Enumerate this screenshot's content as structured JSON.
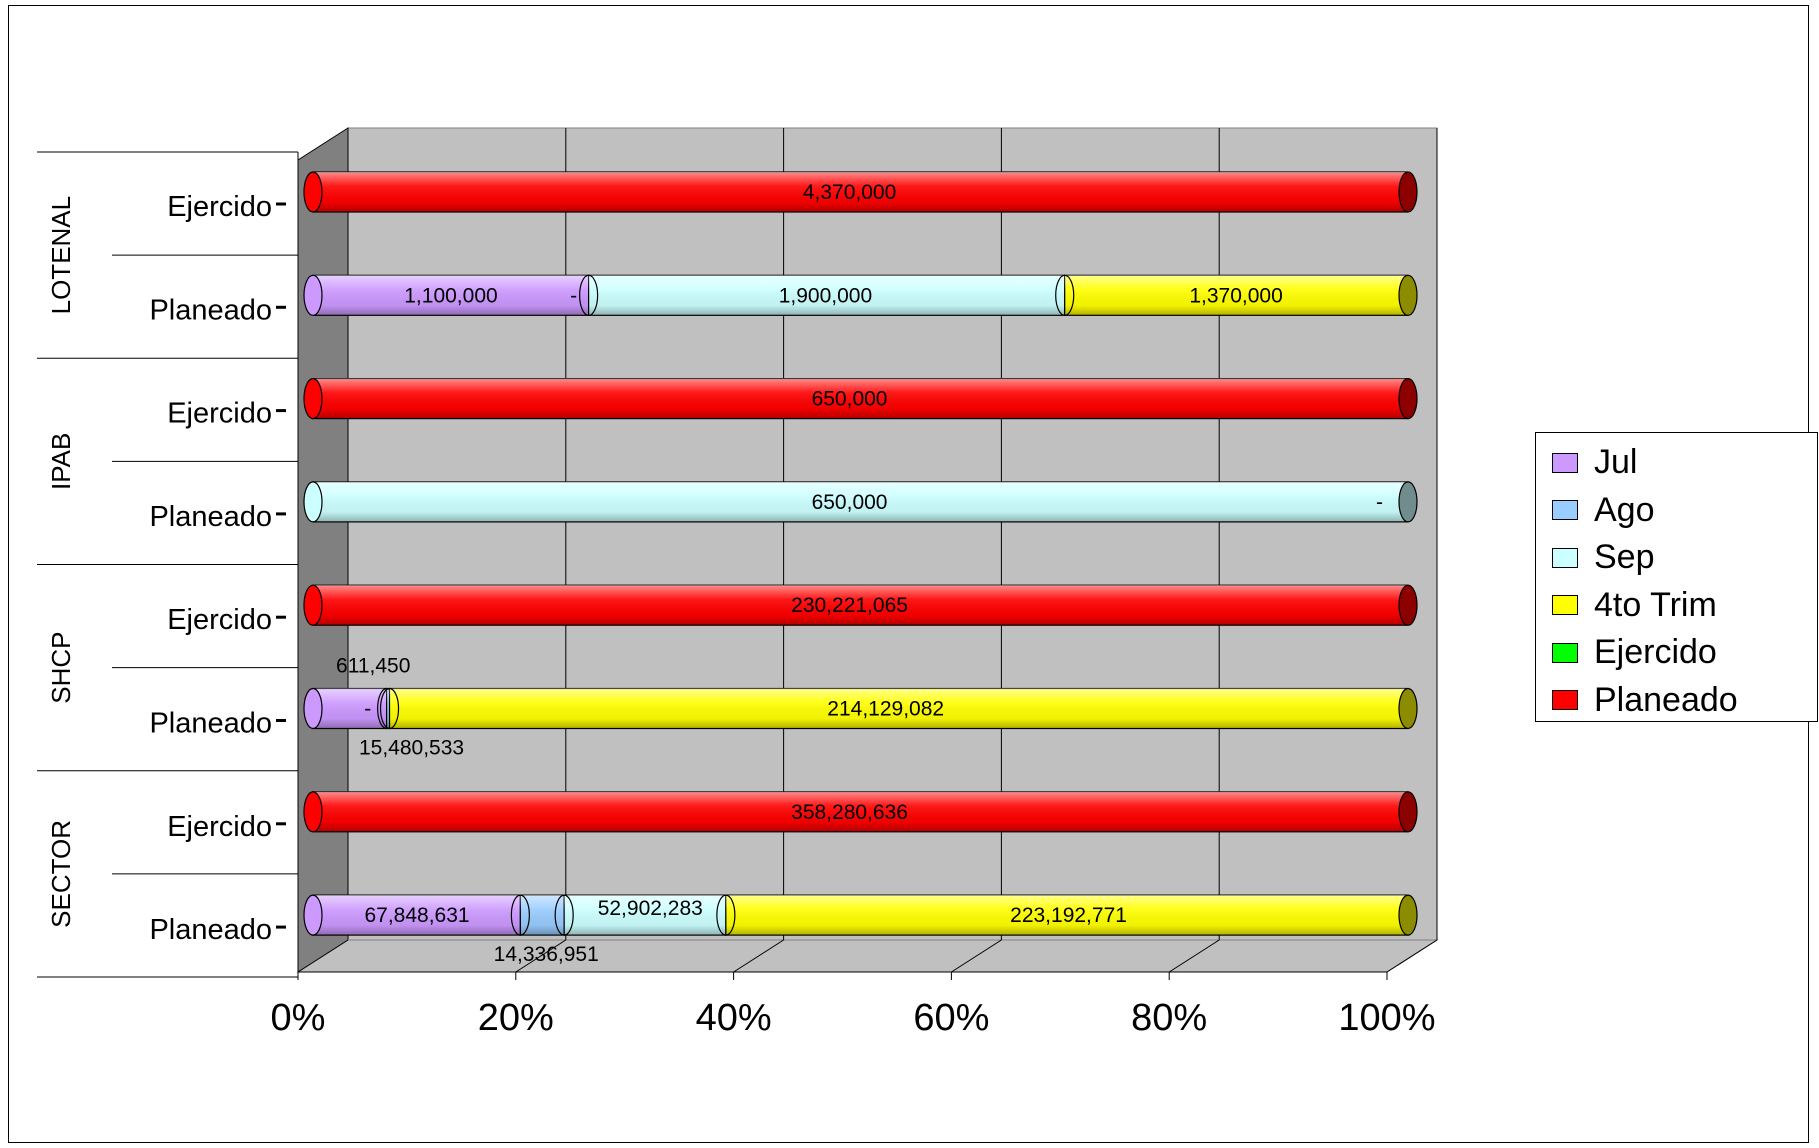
{
  "chart_data": {
    "type": "bar",
    "orientation": "horizontal",
    "stacked": "percent",
    "three_d": true,
    "title": "",
    "xlabel": "",
    "ylabel": "",
    "xlim": [
      0,
      100
    ],
    "x_ticks": [
      "0%",
      "20%",
      "40%",
      "60%",
      "80%",
      "100%"
    ],
    "grid": true,
    "legend_position": "right",
    "groups": [
      {
        "name": "LOTENAL",
        "rows": [
          {
            "label": "Ejercido",
            "values": {
              "Jul": 0,
              "Ago": 0,
              "Sep": 0,
              "4to Trim": 0,
              "Ejercido": 0,
              "Planeado": 4370000
            },
            "labels": [
              {
                "text": "4,370,000",
                "pos": 49
              }
            ]
          },
          {
            "label": "Planeado",
            "values": {
              "Jul": 1100000,
              "Ago": 0,
              "Sep": 1900000,
              "4to Trim": 1370000,
              "Ejercido": 0,
              "Planeado": 0
            },
            "labels": [
              {
                "text": "1,100,000",
                "pos": 12.6
              },
              {
                "text": "-",
                "pos": 23.8
              },
              {
                "text": "1,900,000",
                "pos": 46.8
              },
              {
                "text": "1,370,000",
                "pos": 84.3
              }
            ]
          }
        ]
      },
      {
        "name": "IPAB",
        "rows": [
          {
            "label": "Ejercido",
            "values": {
              "Jul": 0,
              "Ago": 0,
              "Sep": 0,
              "4to Trim": 0,
              "Ejercido": 0,
              "Planeado": 650000
            },
            "labels": [
              {
                "text": "650,000",
                "pos": 49
              }
            ]
          },
          {
            "label": "Planeado",
            "values": {
              "Jul": 0,
              "Ago": 0,
              "Sep": 650000,
              "4to Trim": 0,
              "Ejercido": 0,
              "Planeado": 0
            },
            "labels": [
              {
                "text": "650,000",
                "pos": 49
              },
              {
                "text": "-",
                "pos": 97.4
              }
            ]
          }
        ]
      },
      {
        "name": "SHCP",
        "rows": [
          {
            "label": "Ejercido",
            "values": {
              "Jul": 0,
              "Ago": 0,
              "Sep": 0,
              "4to Trim": 0,
              "Ejercido": 0,
              "Planeado": 230221065
            },
            "labels": [
              {
                "text": "230,221,065",
                "pos": 49
              }
            ]
          },
          {
            "label": "Planeado",
            "values": {
              "Jul": 15480533,
              "Ago": 611450,
              "Sep": 0,
              "4to Trim": 214129082,
              "Ejercido": 0,
              "Planeado": 0
            },
            "labels": [
              {
                "text": "-",
                "pos": 5.0
              },
              {
                "text": "214,129,082",
                "pos": 52.3
              },
              {
                "text": "611,450",
                "pos": 5.5,
                "offset": "above"
              },
              {
                "text": "15,480,533",
                "pos": 9.0,
                "offset": "below"
              }
            ]
          }
        ]
      },
      {
        "name": "SECTOR",
        "rows": [
          {
            "label": "Ejercido",
            "values": {
              "Jul": 0,
              "Ago": 0,
              "Sep": 0,
              "4to Trim": 0,
              "Ejercido": 0,
              "Planeado": 358280636
            },
            "labels": [
              {
                "text": "358,280,636",
                "pos": 49
              }
            ]
          },
          {
            "label": "Planeado",
            "values": {
              "Jul": 67848631,
              "Ago": 14336951,
              "Sep": 52902283,
              "4to Trim": 223192771,
              "Ejercido": 0,
              "Planeado": 0
            },
            "labels": [
              {
                "text": "67,848,631",
                "pos": 9.5
              },
              {
                "text": "52,902,283",
                "pos": 30.8,
                "offset": "up"
              },
              {
                "text": "223,192,771",
                "pos": 69.0
              },
              {
                "text": "14,336,951",
                "pos": 21.3,
                "offset": "below"
              }
            ]
          }
        ]
      }
    ],
    "series": [
      {
        "name": "Jul",
        "color": "#cc99ff"
      },
      {
        "name": "Ago",
        "color": "#99ccff"
      },
      {
        "name": "Sep",
        "color": "#ccffff"
      },
      {
        "name": "4to Trim",
        "color": "#ffff00"
      },
      {
        "name": "Ejercido",
        "color": "#00ff00"
      },
      {
        "name": "Planeado",
        "color": "#ff0000"
      }
    ]
  }
}
